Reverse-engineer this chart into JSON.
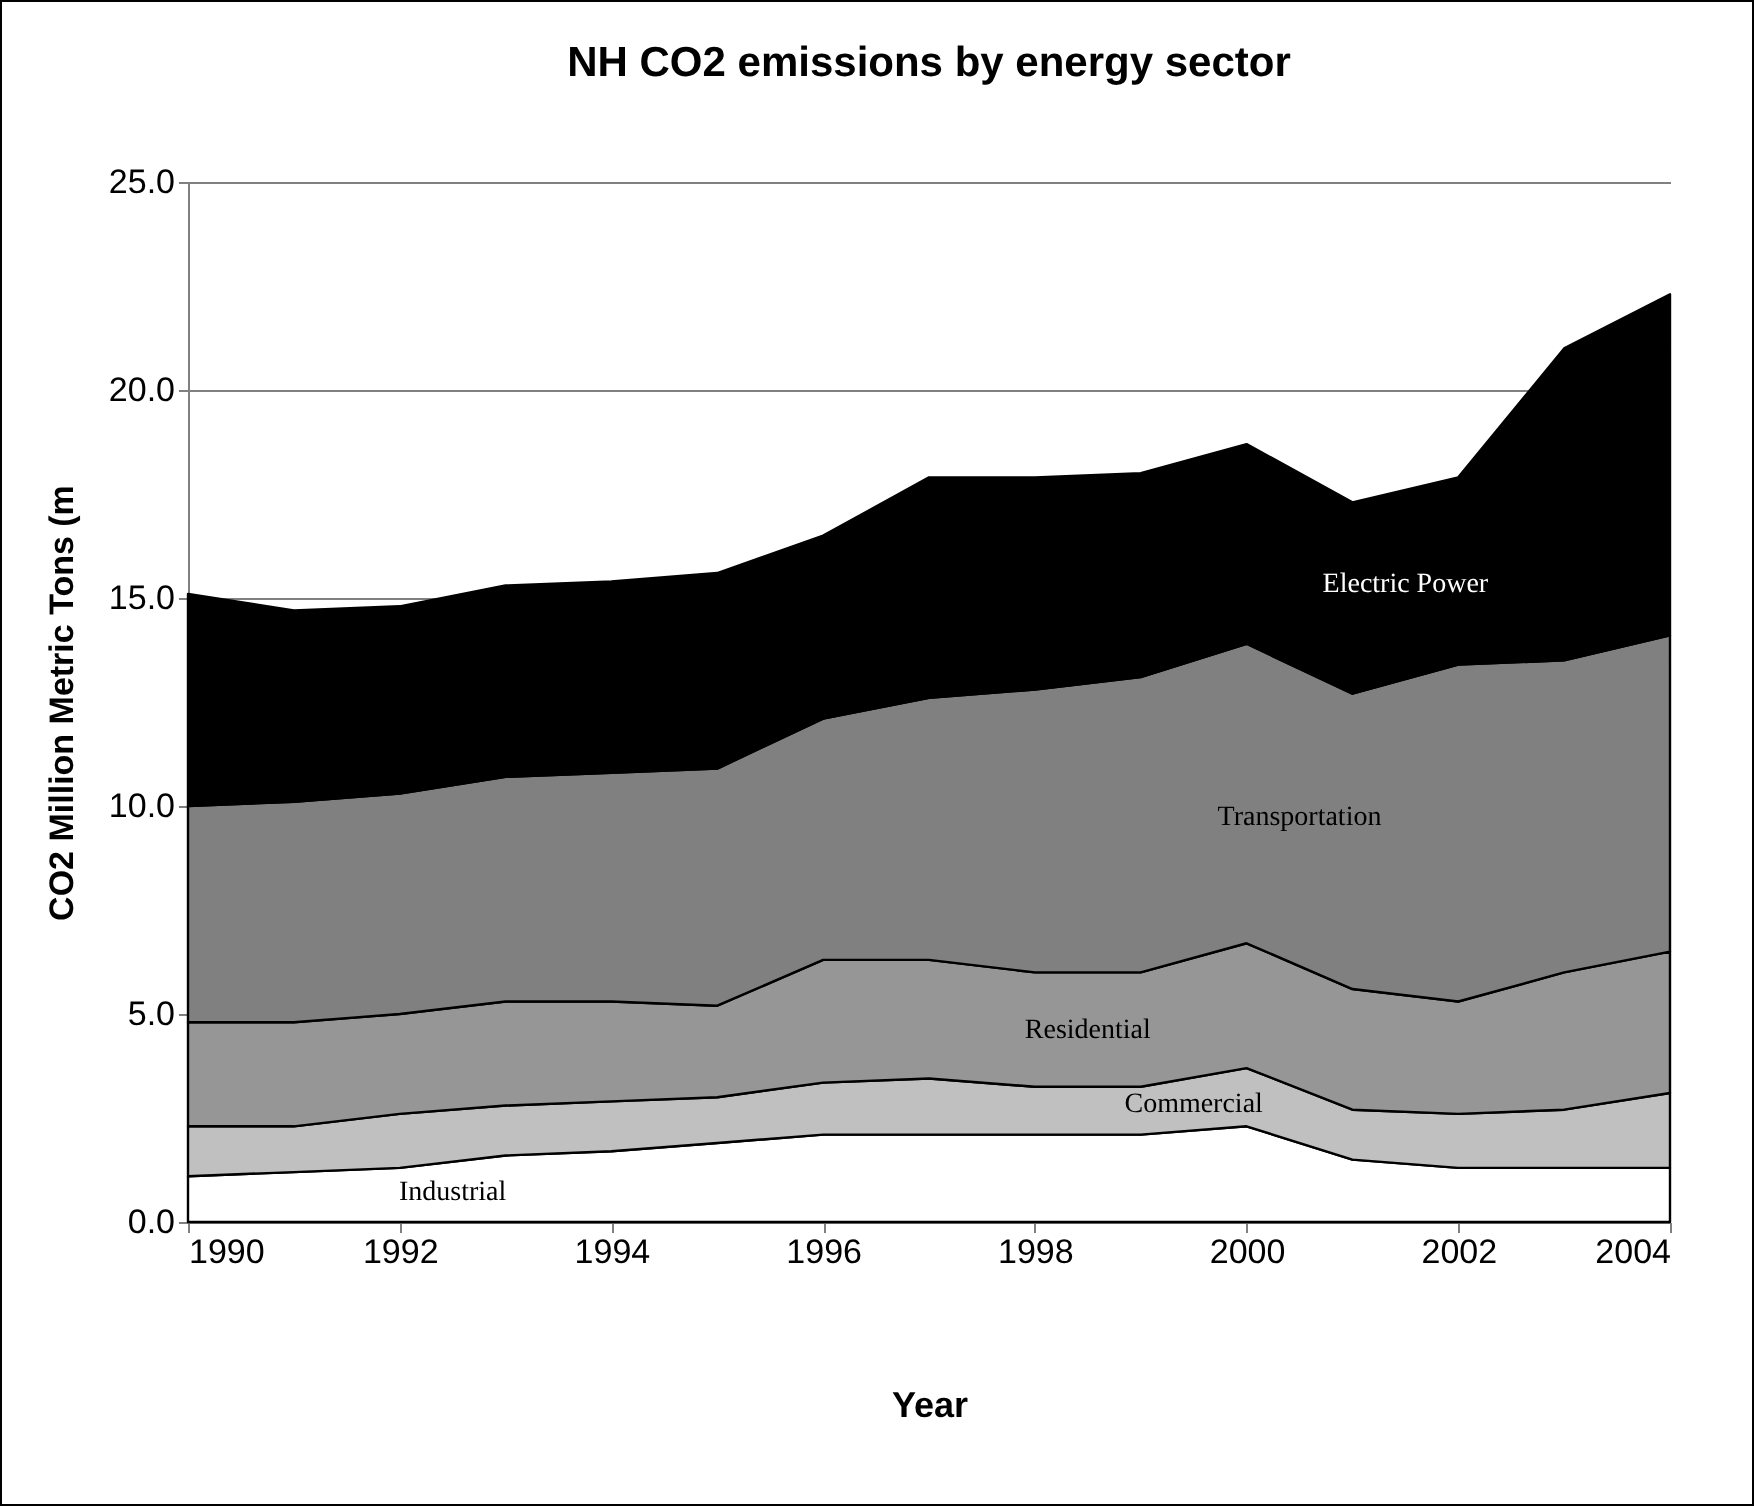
{
  "chart_data": {
    "type": "area",
    "stacked": true,
    "title": "NH CO2 emissions by energy sector",
    "xlabel": "Year",
    "ylabel": "CO2 Million Metric Tons (m",
    "x": [
      1990,
      1991,
      1992,
      1993,
      1994,
      1995,
      1996,
      1997,
      1998,
      1999,
      2000,
      2001,
      2002,
      2003,
      2004
    ],
    "xlim": [
      1990,
      2004
    ],
    "xticks": [
      1990,
      1992,
      1994,
      1996,
      1998,
      2000,
      2002,
      2004
    ],
    "ylim": [
      0,
      25
    ],
    "yticks": [
      {
        "value": 0,
        "label": "0.0"
      },
      {
        "value": 5,
        "label": "5.0"
      },
      {
        "value": 10,
        "label": "10.0"
      },
      {
        "value": 15,
        "label": "15.0"
      },
      {
        "value": 20,
        "label": "20.0"
      },
      {
        "value": 25,
        "label": "25.0"
      }
    ],
    "grid": "y",
    "legend": false,
    "series": [
      {
        "name": "Industrial",
        "color": "#ffffff",
        "values": [
          1.1,
          1.2,
          1.3,
          1.6,
          1.7,
          1.9,
          2.1,
          2.1,
          2.1,
          2.1,
          2.3,
          1.5,
          1.3,
          1.3,
          1.3
        ]
      },
      {
        "name": "Commercial",
        "color": "#c0c0c0",
        "values": [
          1.2,
          1.1,
          1.3,
          1.2,
          1.2,
          1.1,
          1.25,
          1.35,
          1.15,
          1.15,
          1.4,
          1.2,
          1.3,
          1.4,
          1.8
        ]
      },
      {
        "name": "Residential",
        "color": "#969696",
        "values": [
          2.5,
          2.5,
          2.4,
          2.5,
          2.4,
          2.2,
          2.95,
          2.85,
          2.75,
          2.75,
          3.0,
          2.9,
          2.7,
          3.3,
          3.4
        ]
      },
      {
        "name": "Transportation",
        "color": "#808080",
        "values": [
          5.2,
          5.3,
          5.3,
          5.4,
          5.5,
          5.7,
          5.8,
          6.3,
          6.8,
          7.1,
          7.2,
          7.1,
          8.1,
          7.5,
          7.6
        ]
      },
      {
        "name": "Electric Power",
        "color": "#000000",
        "values": [
          5.1,
          4.6,
          4.5,
          4.6,
          4.6,
          4.7,
          4.4,
          5.3,
          5.1,
          4.9,
          4.8,
          4.6,
          4.5,
          7.5,
          8.2
        ]
      }
    ]
  }
}
